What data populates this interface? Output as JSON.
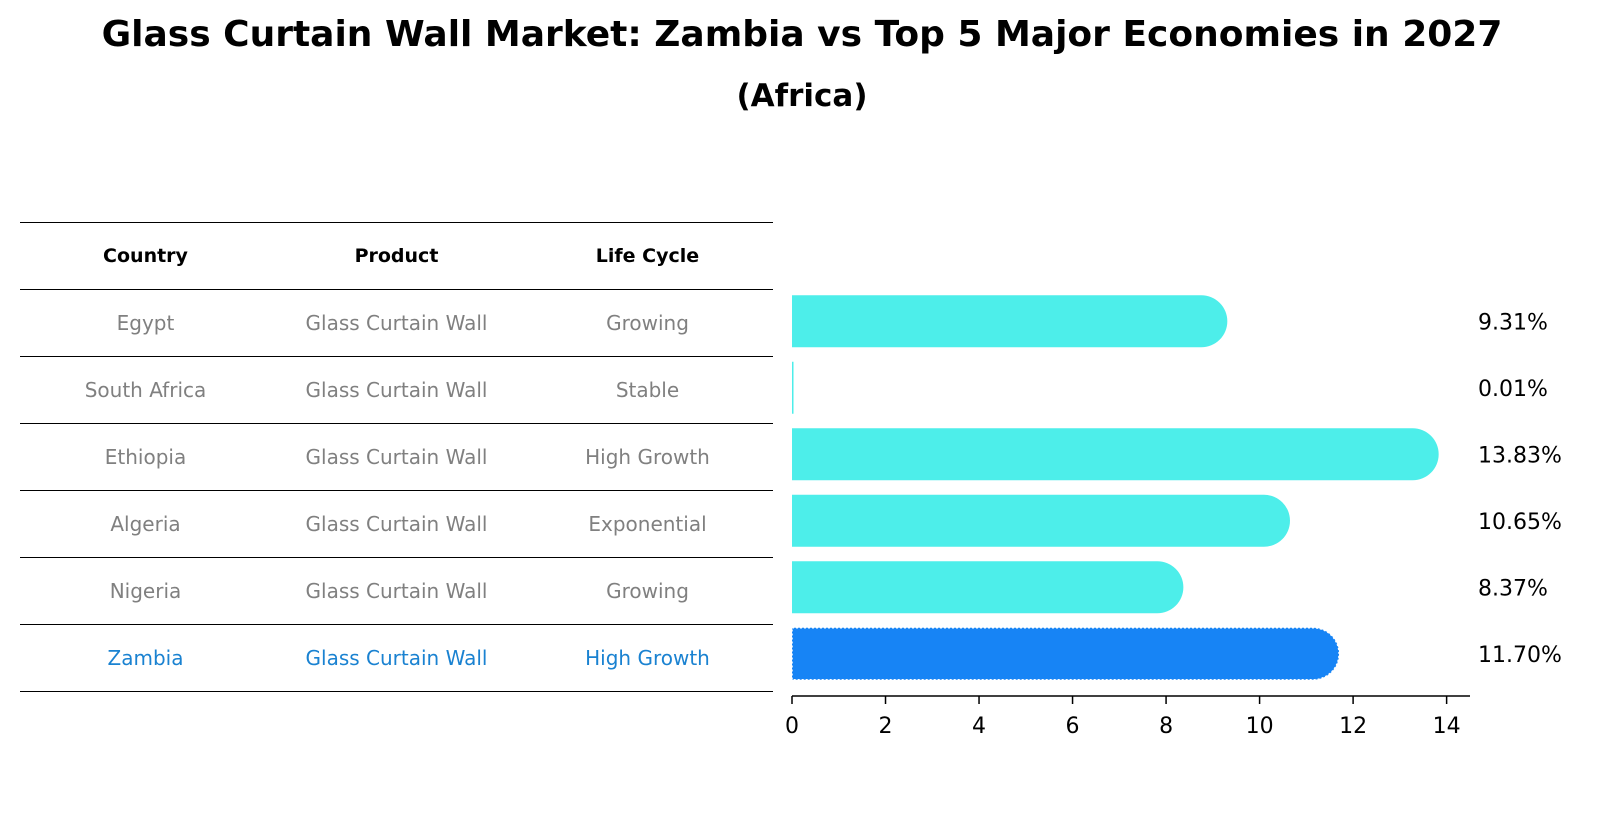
{
  "chart_data": {
    "type": "bar",
    "orientation": "horizontal",
    "title": "Glass Curtain Wall Market: Zambia vs Top 5 Major Economies in 2027",
    "subtitle": "(Africa)",
    "categories": [
      "Egypt",
      "South Africa",
      "Ethiopia",
      "Algeria",
      "Nigeria",
      "Zambia"
    ],
    "values": [
      9.31,
      0.01,
      13.83,
      10.65,
      8.37,
      11.7
    ],
    "value_labels": [
      "9.31%",
      "0.01%",
      "13.83%",
      "10.65%",
      "8.37%",
      "11.70%"
    ],
    "highlight": "Zambia",
    "xlim": [
      0,
      14.5
    ],
    "xticks": [
      0,
      2,
      4,
      6,
      8,
      10,
      12,
      14
    ],
    "xlabel": "",
    "ylabel": "",
    "grid": false,
    "colors": {
      "bar": "#4deeea",
      "highlight_bar": "#1784f5",
      "highlight_text": "#1a82d1",
      "muted_text": "#808080"
    }
  },
  "table": {
    "headers": [
      "Country",
      "Product",
      "Life Cycle"
    ],
    "rows": [
      [
        "Egypt",
        "Glass Curtain Wall",
        "Growing"
      ],
      [
        "South Africa",
        "Glass Curtain Wall",
        "Stable"
      ],
      [
        "Ethiopia",
        "Glass Curtain Wall",
        "High Growth"
      ],
      [
        "Algeria",
        "Glass Curtain Wall",
        "Exponential"
      ],
      [
        "Nigeria",
        "Glass Curtain Wall",
        "Growing"
      ],
      [
        "Zambia",
        "Glass Curtain Wall",
        "High Growth"
      ]
    ]
  }
}
